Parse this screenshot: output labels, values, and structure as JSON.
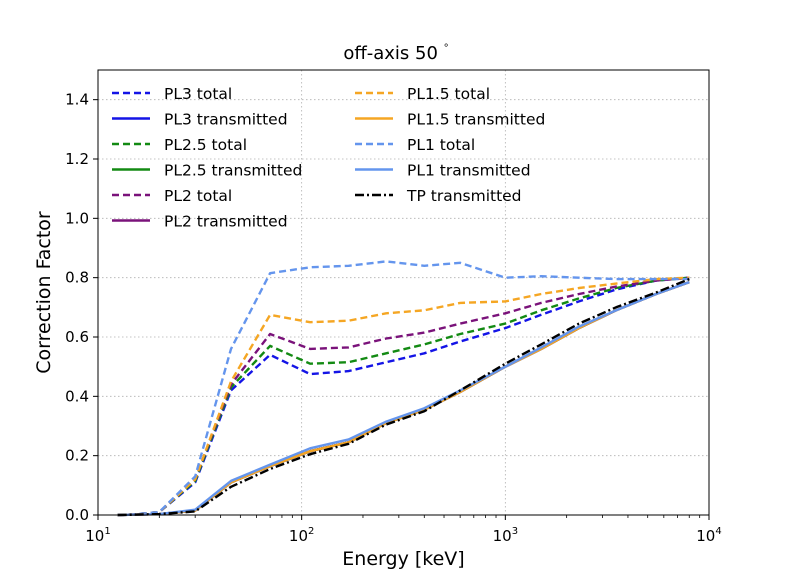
{
  "chart_data": {
    "type": "line",
    "title": "off-axis 50$^\\circ$",
    "title_text": "off-axis 50",
    "title_degree": "°",
    "xlabel": "Energy [keV]",
    "ylabel": "Correction Factor",
    "xscale": "log",
    "xlim": [
      10,
      10000
    ],
    "ylim": [
      0,
      1.5
    ],
    "grid": true,
    "legend_position": "upper-left",
    "x_ticks": [
      {
        "value": 10,
        "base": "10",
        "exp": "1"
      },
      {
        "value": 100,
        "base": "10",
        "exp": "2"
      },
      {
        "value": 1000,
        "base": "10",
        "exp": "3"
      },
      {
        "value": 10000,
        "base": "10",
        "exp": "4"
      }
    ],
    "y_ticks": [
      {
        "value": 0.0,
        "label": "0.0"
      },
      {
        "value": 0.2,
        "label": "0.2"
      },
      {
        "value": 0.4,
        "label": "0.4"
      },
      {
        "value": 0.6,
        "label": "0.6"
      },
      {
        "value": 0.8,
        "label": "0.8"
      },
      {
        "value": 1.0,
        "label": "1.0"
      },
      {
        "value": 1.2,
        "label": "1.2"
      },
      {
        "value": 1.4,
        "label": "1.4"
      }
    ],
    "x": [
      12.5,
      15,
      20,
      30,
      45,
      70,
      110,
      170,
      260,
      400,
      600,
      1000,
      1500,
      2300,
      3500,
      5500,
      8000
    ],
    "series": [
      {
        "name": "PL3 total",
        "color": "#1414e6",
        "style": "dashed",
        "values": [
          0.0,
          0.002,
          0.01,
          0.11,
          0.42,
          0.54,
          0.475,
          0.485,
          0.515,
          0.545,
          0.585,
          0.63,
          0.675,
          0.72,
          0.76,
          0.79,
          0.8
        ]
      },
      {
        "name": "PL3 transmitted",
        "color": "#1414e6",
        "style": "solid",
        "values": [
          0.0,
          0.001,
          0.003,
          0.015,
          0.11,
          0.165,
          0.215,
          0.245,
          0.31,
          0.355,
          0.415,
          0.5,
          0.56,
          0.63,
          0.69,
          0.745,
          0.785
        ]
      },
      {
        "name": "PL2.5 total",
        "color": "#138a13",
        "style": "dashed",
        "values": [
          0.0,
          0.002,
          0.01,
          0.115,
          0.43,
          0.57,
          0.51,
          0.515,
          0.545,
          0.575,
          0.61,
          0.645,
          0.69,
          0.73,
          0.765,
          0.79,
          0.8
        ]
      },
      {
        "name": "PL2.5 transmitted",
        "color": "#138a13",
        "style": "solid",
        "values": [
          0.0,
          0.001,
          0.003,
          0.015,
          0.11,
          0.165,
          0.215,
          0.245,
          0.31,
          0.355,
          0.415,
          0.5,
          0.56,
          0.63,
          0.69,
          0.745,
          0.785
        ]
      },
      {
        "name": "PL2 total",
        "color": "#7a127a",
        "style": "dashed",
        "values": [
          0.0,
          0.002,
          0.01,
          0.12,
          0.44,
          0.61,
          0.56,
          0.565,
          0.595,
          0.615,
          0.645,
          0.68,
          0.715,
          0.745,
          0.77,
          0.79,
          0.8
        ]
      },
      {
        "name": "PL2 transmitted",
        "color": "#7a127a",
        "style": "solid",
        "values": [
          0.0,
          0.001,
          0.003,
          0.015,
          0.11,
          0.165,
          0.215,
          0.245,
          0.31,
          0.355,
          0.415,
          0.5,
          0.56,
          0.63,
          0.69,
          0.745,
          0.785
        ]
      },
      {
        "name": "PL1.5 total",
        "color": "#f5a623",
        "style": "dashed",
        "values": [
          0.0,
          0.002,
          0.01,
          0.12,
          0.45,
          0.675,
          0.65,
          0.655,
          0.68,
          0.69,
          0.715,
          0.72,
          0.745,
          0.765,
          0.78,
          0.795,
          0.8
        ]
      },
      {
        "name": "PL1.5 transmitted",
        "color": "#f5a623",
        "style": "solid",
        "values": [
          0.0,
          0.001,
          0.003,
          0.015,
          0.11,
          0.165,
          0.215,
          0.245,
          0.31,
          0.355,
          0.415,
          0.5,
          0.56,
          0.63,
          0.69,
          0.745,
          0.785
        ]
      },
      {
        "name": "PL1 total",
        "color": "#6495ed",
        "style": "dashed",
        "values": [
          0.0,
          0.002,
          0.01,
          0.13,
          0.56,
          0.815,
          0.835,
          0.84,
          0.855,
          0.84,
          0.85,
          0.8,
          0.805,
          0.8,
          0.795,
          0.795,
          0.795
        ]
      },
      {
        "name": "PL1 transmitted",
        "color": "#6495ed",
        "style": "solid",
        "values": [
          0.0,
          0.001,
          0.003,
          0.018,
          0.115,
          0.17,
          0.225,
          0.255,
          0.315,
          0.36,
          0.42,
          0.5,
          0.565,
          0.635,
          0.69,
          0.745,
          0.785
        ]
      },
      {
        "name": "TP transmitted",
        "color": "#000000",
        "style": "dashdot",
        "values": [
          0.0,
          0.001,
          0.003,
          0.012,
          0.095,
          0.155,
          0.205,
          0.24,
          0.305,
          0.35,
          0.42,
          0.51,
          0.575,
          0.645,
          0.7,
          0.75,
          0.795
        ]
      }
    ],
    "legend_columns": [
      [
        "PL3 total",
        "PL3 transmitted",
        "PL2.5 total",
        "PL2.5 transmitted",
        "PL2 total",
        "PL2 transmitted"
      ],
      [
        "PL1.5 total",
        "PL1.5 transmitted",
        "PL1 total",
        "PL1 transmitted",
        "TP transmitted"
      ]
    ]
  }
}
